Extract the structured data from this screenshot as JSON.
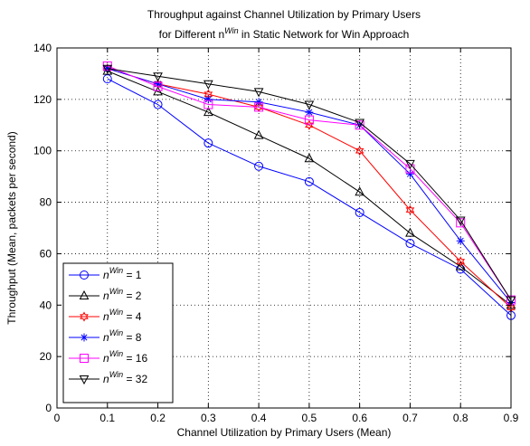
{
  "chart_data": {
    "type": "line",
    "title_line1": "Throughput against Channel Utilization by Primary Users",
    "title_line2_pre": "for Different n",
    "title_line2_sup": "Win",
    "title_line2_post": " in Static Network for Win Approach",
    "xlabel": "Channel Utilization by Primary Users (Mean)",
    "ylabel": "Throughput (Mean, packets per second)",
    "xlim": [
      0,
      0.9
    ],
    "ylim": [
      0,
      140
    ],
    "xticks": [
      0,
      0.1,
      0.2,
      0.3,
      0.4,
      0.5,
      0.6,
      0.7,
      0.8,
      0.9
    ],
    "xtick_labels": [
      "0",
      "0.1",
      "0.2",
      "0.3",
      "0.4",
      "0.5",
      "0.6",
      "0.7",
      "0.8",
      "0.9"
    ],
    "yticks": [
      0,
      20,
      40,
      60,
      80,
      100,
      120,
      140
    ],
    "ytick_labels": [
      "0",
      "20",
      "40",
      "60",
      "80",
      "100",
      "120",
      "140"
    ],
    "grid": true,
    "legend_position": "bottom-left",
    "x": [
      0.1,
      0.2,
      0.3,
      0.4,
      0.5,
      0.6,
      0.7,
      0.8,
      0.9
    ],
    "series": [
      {
        "name_base": "n",
        "name_sup": "Win",
        "name_value": " = 1",
        "color": "#0000ff",
        "marker": "circle",
        "values": [
          128,
          118,
          103,
          94,
          88,
          76,
          64,
          54,
          36
        ]
      },
      {
        "name_base": "n",
        "name_sup": "Win",
        "name_value": " = 2",
        "color": "#000000",
        "marker": "triangle-up",
        "values": [
          131,
          123,
          115,
          106,
          97,
          84,
          68,
          55,
          40
        ]
      },
      {
        "name_base": "n",
        "name_sup": "Win",
        "name_value": " = 4",
        "color": "#ff0000",
        "marker": "hexagram",
        "values": [
          132,
          126,
          122,
          117,
          110,
          100,
          77,
          57,
          39
        ]
      },
      {
        "name_base": "n",
        "name_sup": "Win",
        "name_value": " = 8",
        "color": "#0000ff",
        "marker": "asterisk",
        "values": [
          132,
          126,
          120,
          119,
          115,
          110,
          91,
          65,
          41
        ]
      },
      {
        "name_base": "n",
        "name_sup": "Win",
        "name_value": " = 16",
        "color": "#ff00ff",
        "marker": "square",
        "values": [
          133,
          125,
          118,
          117,
          112,
          110,
          93,
          72,
          42
        ]
      },
      {
        "name_base": "n",
        "name_sup": "Win",
        "name_value": " = 32",
        "color": "#000000",
        "marker": "triangle-down",
        "values": [
          132,
          129,
          126,
          123,
          118,
          111,
          95,
          73,
          42
        ]
      }
    ]
  }
}
